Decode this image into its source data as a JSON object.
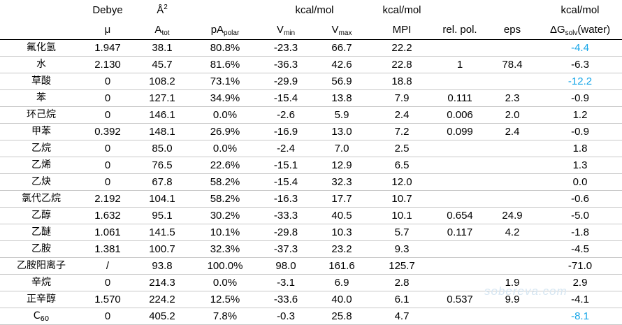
{
  "units": {
    "dipole": "Debye",
    "area": "Å",
    "area_exp": "2",
    "potential": "kcal/mol",
    "mpi": "kcal/mol",
    "solv": "kcal/mol"
  },
  "headers": {
    "name": "",
    "mu": "μ",
    "atot_base": "A",
    "atot_sub": "tot",
    "papolar_base": "pA",
    "papolar_sub": "polar",
    "vmin_base": "V",
    "vmin_sub": "min",
    "vmax_base": "V",
    "vmax_sub": "max",
    "mpi": "MPI",
    "relpol": "rel. pol.",
    "eps": "eps",
    "dg_base": "ΔG",
    "dg_sub": "solv",
    "dg_tail": "(water)"
  },
  "rows": [
    {
      "name": "氟化氢",
      "mu": "1.947",
      "atot": "38.1",
      "papolar": "80.8%",
      "vmin": "-23.3",
      "vmax": "66.7",
      "mpi": "22.2",
      "relpol": "",
      "eps": "",
      "dg": "-4.4",
      "dg_highlight": true
    },
    {
      "name": "水",
      "mu": "2.130",
      "atot": "45.7",
      "papolar": "81.6%",
      "vmin": "-36.3",
      "vmax": "42.6",
      "mpi": "22.8",
      "relpol": "1",
      "eps": "78.4",
      "dg": "-6.3",
      "dg_highlight": false
    },
    {
      "name": "草酸",
      "mu": "0",
      "atot": "108.2",
      "papolar": "73.1%",
      "vmin": "-29.9",
      "vmax": "56.9",
      "mpi": "18.8",
      "relpol": "",
      "eps": "",
      "dg": "-12.2",
      "dg_highlight": true
    },
    {
      "name": "苯",
      "mu": "0",
      "atot": "127.1",
      "papolar": "34.9%",
      "vmin": "-15.4",
      "vmax": "13.8",
      "mpi": "7.9",
      "relpol": "0.111",
      "eps": "2.3",
      "dg": "-0.9",
      "dg_highlight": false
    },
    {
      "name": "环己烷",
      "mu": "0",
      "atot": "146.1",
      "papolar": "0.0%",
      "vmin": "-2.6",
      "vmax": "5.9",
      "mpi": "2.4",
      "relpol": "0.006",
      "eps": "2.0",
      "dg": "1.2",
      "dg_highlight": false
    },
    {
      "name": "甲苯",
      "mu": "0.392",
      "atot": "148.1",
      "papolar": "26.9%",
      "vmin": "-16.9",
      "vmax": "13.0",
      "mpi": "7.2",
      "relpol": "0.099",
      "eps": "2.4",
      "dg": "-0.9",
      "dg_highlight": false
    },
    {
      "name": "乙烷",
      "mu": "0",
      "atot": "85.0",
      "papolar": "0.0%",
      "vmin": "-2.4",
      "vmax": "7.0",
      "mpi": "2.5",
      "relpol": "",
      "eps": "",
      "dg": "1.8",
      "dg_highlight": false
    },
    {
      "name": "乙烯",
      "mu": "0",
      "atot": "76.5",
      "papolar": "22.6%",
      "vmin": "-15.1",
      "vmax": "12.9",
      "mpi": "6.5",
      "relpol": "",
      "eps": "",
      "dg": "1.3",
      "dg_highlight": false
    },
    {
      "name": "乙炔",
      "mu": "0",
      "atot": "67.8",
      "papolar": "58.2%",
      "vmin": "-15.4",
      "vmax": "32.3",
      "mpi": "12.0",
      "relpol": "",
      "eps": "",
      "dg": "0.0",
      "dg_highlight": false
    },
    {
      "name": "氯代乙烷",
      "mu": "2.192",
      "atot": "104.1",
      "papolar": "58.2%",
      "vmin": "-16.3",
      "vmax": "17.7",
      "mpi": "10.7",
      "relpol": "",
      "eps": "",
      "dg": "-0.6",
      "dg_highlight": false
    },
    {
      "name": "乙醇",
      "mu": "1.632",
      "atot": "95.1",
      "papolar": "30.2%",
      "vmin": "-33.3",
      "vmax": "40.5",
      "mpi": "10.1",
      "relpol": "0.654",
      "eps": "24.9",
      "dg": "-5.0",
      "dg_highlight": false
    },
    {
      "name": "乙醚",
      "mu": "1.061",
      "atot": "141.5",
      "papolar": "10.1%",
      "vmin": "-29.8",
      "vmax": "10.3",
      "mpi": "5.7",
      "relpol": "0.117",
      "eps": "4.2",
      "dg": "-1.8",
      "dg_highlight": false
    },
    {
      "name": "乙胺",
      "mu": "1.381",
      "atot": "100.7",
      "papolar": "32.3%",
      "vmin": "-37.3",
      "vmax": "23.2",
      "mpi": "9.3",
      "relpol": "",
      "eps": "",
      "dg": "-4.5",
      "dg_highlight": false
    },
    {
      "name": "乙胺阳离子",
      "mu": "/",
      "atot": "93.8",
      "papolar": "100.0%",
      "vmin": "98.0",
      "vmax": "161.6",
      "mpi": "125.7",
      "relpol": "",
      "eps": "",
      "dg": "-71.0",
      "dg_highlight": false
    },
    {
      "name": "辛烷",
      "mu": "0",
      "atot": "214.3",
      "papolar": "0.0%",
      "vmin": "-3.1",
      "vmax": "6.9",
      "mpi": "2.8",
      "relpol": "",
      "eps": "1.9",
      "dg": "2.9",
      "dg_highlight": false
    },
    {
      "name": "正辛醇",
      "mu": "1.570",
      "atot": "224.2",
      "papolar": "12.5%",
      "vmin": "-33.6",
      "vmax": "40.0",
      "mpi": "6.1",
      "relpol": "0.537",
      "eps": "9.9",
      "dg": "-4.1",
      "dg_highlight": false
    },
    {
      "name": "C",
      "name_sub": "60",
      "mu": "0",
      "atot": "405.2",
      "papolar": "7.8%",
      "vmin": "-0.3",
      "vmax": "25.8",
      "mpi": "4.7",
      "relpol": "",
      "eps": "",
      "dg": "-8.1",
      "dg_highlight": true
    }
  ],
  "watermark": "sobereva.com"
}
